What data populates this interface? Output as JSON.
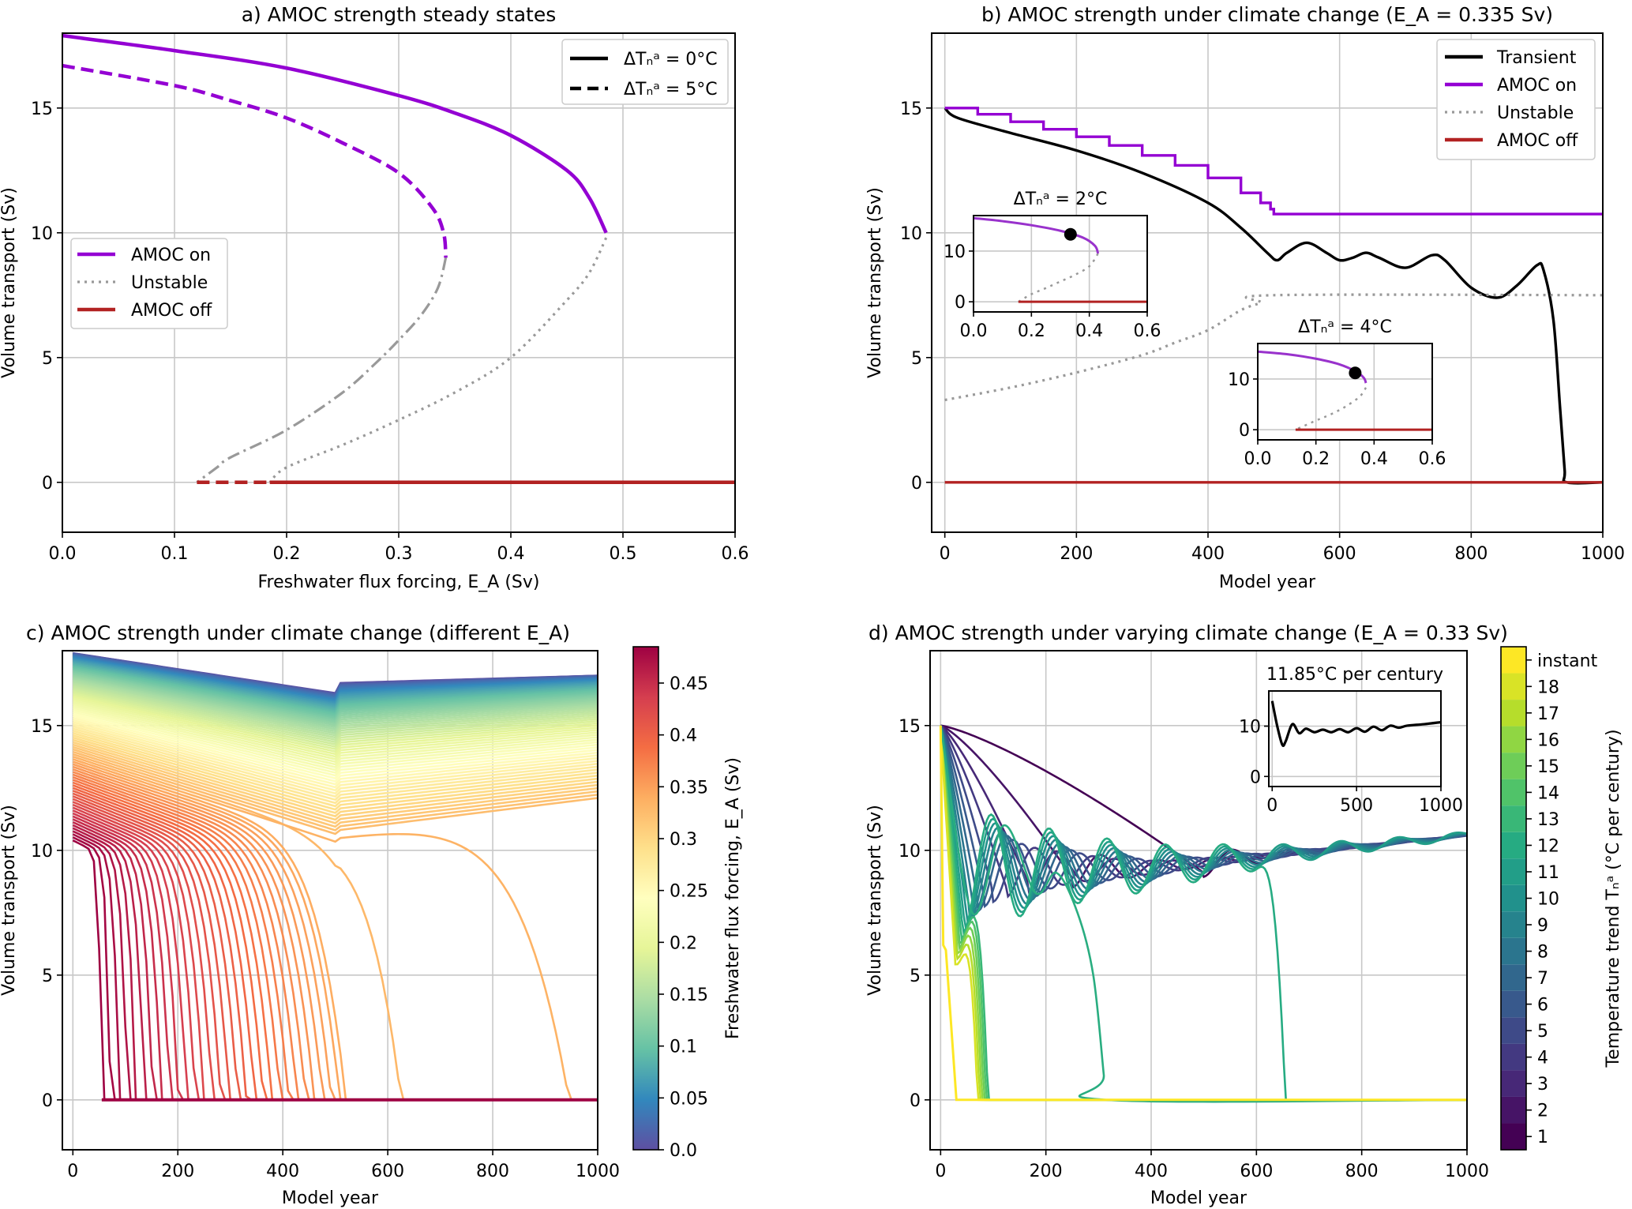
{
  "chart_data": [
    {
      "id": "a",
      "type": "line",
      "title": "a) AMOC strength steady states",
      "xlabel": "Freshwater flux forcing, E_A (Sv)",
      "ylabel": "Volume transport (Sv)",
      "xlim": [
        0.0,
        0.6
      ],
      "ylim": [
        -2,
        18
      ],
      "xticks": [
        "0.0",
        "0.1",
        "0.2",
        "0.3",
        "0.4",
        "0.5",
        "0.6"
      ],
      "yticks": [
        "0",
        "5",
        "10",
        "15"
      ],
      "grid": true,
      "legends": [
        {
          "placement": "upper-right",
          "entries": [
            {
              "label": "ΔTₙᵃ = 0°C",
              "style": "solid",
              "color": "#000000"
            },
            {
              "label": "ΔTₙᵃ = 5°C",
              "style": "dashed",
              "color": "#000000"
            }
          ]
        },
        {
          "placement": "center-left",
          "entries": [
            {
              "label": "AMOC on",
              "style": "solid",
              "color": "#9400d3"
            },
            {
              "label": "Unstable",
              "style": "dotted",
              "color": "#999999"
            },
            {
              "label": "AMOC off",
              "style": "solid",
              "color": "#b22222"
            }
          ]
        }
      ],
      "series": [
        {
          "name": "AMOC on (ΔT=0°C)",
          "color": "#9400d3",
          "style": "solid",
          "x": [
            0.0,
            0.1,
            0.2,
            0.3,
            0.35,
            0.4,
            0.45,
            0.47,
            0.485
          ],
          "y": [
            17.9,
            17.3,
            16.6,
            15.5,
            14.8,
            13.9,
            12.5,
            11.4,
            10.0
          ]
        },
        {
          "name": "Unstable (ΔT=0°C)",
          "color": "#999999",
          "style": "dotted",
          "x": [
            0.485,
            0.47,
            0.45,
            0.4,
            0.35,
            0.3,
            0.25,
            0.2,
            0.185
          ],
          "y": [
            9.8,
            8.4,
            7.3,
            5.0,
            3.6,
            2.5,
            1.5,
            0.6,
            0.0
          ]
        },
        {
          "name": "AMOC off (ΔT=0°C)",
          "color": "#b22222",
          "style": "solid",
          "x": [
            0.185,
            0.6
          ],
          "y": [
            0,
            0
          ]
        },
        {
          "name": "AMOC on (ΔT=5°C)",
          "color": "#9400d3",
          "style": "dashed",
          "x": [
            0.0,
            0.1,
            0.15,
            0.2,
            0.25,
            0.3,
            0.33,
            0.34,
            0.342
          ],
          "y": [
            16.7,
            15.9,
            15.3,
            14.6,
            13.6,
            12.4,
            11.0,
            10.0,
            9.0
          ]
        },
        {
          "name": "Unstable (ΔT=5°C)",
          "color": "#999999",
          "style": "dashdot",
          "x": [
            0.342,
            0.335,
            0.32,
            0.3,
            0.28,
            0.25,
            0.2,
            0.15,
            0.138,
            0.12
          ],
          "y": [
            9.0,
            7.8,
            6.7,
            5.7,
            4.8,
            3.6,
            2.1,
            1.0,
            0.6,
            0.0
          ]
        },
        {
          "name": "AMOC off (ΔT=5°C)",
          "color": "#b22222",
          "style": "dashed",
          "x": [
            0.12,
            0.6
          ],
          "y": [
            0,
            0
          ]
        }
      ]
    },
    {
      "id": "b",
      "type": "line",
      "title": "b) AMOC strength under climate change (E_A = 0.335 Sv)",
      "xlabel": "Model year",
      "ylabel": "Volume transport (Sv)",
      "xlim": [
        -20,
        1000
      ],
      "ylim": [
        -2,
        18
      ],
      "xticks": [
        "0",
        "200",
        "400",
        "600",
        "800",
        "1000"
      ],
      "yticks": [
        "0",
        "5",
        "10",
        "15"
      ],
      "grid": true,
      "legend": {
        "placement": "upper-right",
        "entries": [
          {
            "label": "Transient",
            "style": "solid",
            "color": "#000000"
          },
          {
            "label": "AMOC on",
            "style": "solid",
            "color": "#9400d3"
          },
          {
            "label": "Unstable",
            "style": "dotted",
            "color": "#999999"
          },
          {
            "label": "AMOC off",
            "style": "solid",
            "color": "#b22222"
          }
        ]
      },
      "series": [
        {
          "name": "Transient",
          "color": "#000000",
          "style": "solid",
          "x": [
            0,
            20,
            100,
            200,
            300,
            400,
            450,
            490,
            505,
            520,
            550,
            580,
            600,
            620,
            640,
            660,
            700,
            740,
            760,
            800,
            840,
            870,
            900,
            910,
            925,
            935,
            942,
            945,
            1000
          ],
          "y": [
            15.0,
            14.6,
            14.0,
            13.3,
            12.4,
            11.2,
            10.2,
            9.2,
            8.9,
            9.2,
            9.6,
            9.2,
            8.9,
            9.0,
            9.2,
            9.0,
            8.6,
            9.1,
            8.9,
            7.8,
            7.4,
            7.9,
            8.7,
            8.5,
            6.5,
            3.0,
            0.5,
            0.0,
            0.0
          ]
        },
        {
          "name": "AMOC on",
          "color": "#9400d3",
          "style": "step",
          "x": [
            0,
            50,
            100,
            150,
            200,
            250,
            300,
            350,
            400,
            450,
            480,
            495,
            500,
            1000
          ],
          "y": [
            15.0,
            14.75,
            14.45,
            14.15,
            13.85,
            13.5,
            13.1,
            12.7,
            12.2,
            11.6,
            11.2,
            10.95,
            10.75,
            10.75
          ]
        },
        {
          "name": "Unstable",
          "color": "#999999",
          "style": "dotted",
          "x": [
            0,
            100,
            200,
            300,
            350,
            400,
            450,
            480,
            500,
            1000
          ],
          "y": [
            3.3,
            3.8,
            4.4,
            5.1,
            5.6,
            6.1,
            6.9,
            7.2,
            7.5,
            7.5
          ]
        },
        {
          "name": "AMOC off",
          "color": "#b22222",
          "style": "solid",
          "x": [
            0,
            1000
          ],
          "y": [
            0,
            0
          ]
        }
      ],
      "insets": [
        {
          "title": "ΔTₙᵃ = 2°C",
          "xlim": [
            0,
            0.6
          ],
          "ylim": [
            -2,
            17
          ],
          "xticks": [
            "0.0",
            "0.2",
            "0.4",
            "0.6"
          ],
          "yticks": [
            "0",
            "10"
          ],
          "on": {
            "x": [
              0,
              0.1,
              0.2,
              0.3,
              0.38,
              0.42,
              0.43
            ],
            "y": [
              16.5,
              15.9,
              15.1,
              14.0,
              12.6,
              11.0,
              9.5
            ]
          },
          "unstable": {
            "x": [
              0.43,
              0.4,
              0.35,
              0.3,
              0.25,
              0.2,
              0.155
            ],
            "y": [
              9.5,
              7.0,
              5.3,
              4.0,
              2.7,
              1.5,
              0.0
            ]
          },
          "off": {
            "x": [
              0.155,
              0.6
            ],
            "y": [
              0,
              0
            ]
          },
          "marker": {
            "x": 0.335,
            "y": 13.3
          }
        },
        {
          "title": "ΔTₙᵃ = 4°C",
          "xlim": [
            0,
            0.6
          ],
          "ylim": [
            -2,
            17
          ],
          "xticks": [
            "0.0",
            "0.2",
            "0.4",
            "0.6"
          ],
          "yticks": [
            "0",
            "10"
          ],
          "on": {
            "x": [
              0,
              0.1,
              0.2,
              0.28,
              0.34,
              0.365,
              0.372
            ],
            "y": [
              15.4,
              14.9,
              14.0,
              12.9,
              11.4,
              10.2,
              9.2
            ]
          },
          "unstable": {
            "x": [
              0.372,
              0.35,
              0.3,
              0.25,
              0.2,
              0.13
            ],
            "y": [
              8.3,
              6.5,
              4.5,
              3.0,
              1.8,
              0.0
            ]
          },
          "off": {
            "x": [
              0.13,
              0.6
            ],
            "y": [
              0,
              0
            ]
          },
          "marker": {
            "x": 0.335,
            "y": 11.2
          }
        }
      ]
    },
    {
      "id": "c",
      "type": "line",
      "title": "c) AMOC strength under climate change (different E_A)",
      "xlabel": "Model year",
      "ylabel": "Volume transport (Sv)",
      "xlim": [
        -20,
        1000
      ],
      "ylim": [
        -2,
        18
      ],
      "xticks": [
        "0",
        "200",
        "400",
        "600",
        "800",
        "1000"
      ],
      "yticks": [
        "0",
        "5",
        "10",
        "15"
      ],
      "grid": true,
      "colorbar": {
        "label": "Freshwater flux forcing, E_A (Sv)",
        "colormap": "Spectral_r",
        "range": [
          0.0,
          0.485
        ],
        "ticks": [
          "0.0",
          "0.05",
          "0.1",
          "0.15",
          "0.2",
          "0.25",
          "0.3",
          "0.35",
          "0.4",
          "0.45"
        ]
      },
      "series_summary": {
        "ea_values": "0.0 to 0.485 Sv, approx. 0.005 Sv spacing (~97 curves)",
        "start_y_at_EA0": 17.9,
        "start_y_at_EA_max": 10.4,
        "kink_year": 500,
        "collapse_years_examples": [
          55,
          80,
          100,
          120,
          200,
          300,
          400,
          500,
          520,
          625,
          945
        ],
        "end_y_top_curve": 16.7
      }
    },
    {
      "id": "d",
      "type": "line",
      "title": "d) AMOC strength under varying climate change (E_A = 0.33 Sv)",
      "xlabel": "Model year",
      "ylabel": "Volume transport (Sv)",
      "xlim": [
        -20,
        1000
      ],
      "ylim": [
        -2,
        18
      ],
      "xticks": [
        "0",
        "200",
        "400",
        "600",
        "800",
        "1000"
      ],
      "yticks": [
        "0",
        "5",
        "10",
        "15"
      ],
      "grid": true,
      "colorbar": {
        "label": "Temperature trend Tₙᵃ (°C per century)",
        "colormap": "viridis (discrete)",
        "ticks": [
          "1",
          "2",
          "3",
          "4",
          "5",
          "6",
          "7",
          "8",
          "9",
          "10",
          "11",
          "12",
          "13",
          "14",
          "15",
          "16",
          "17",
          "18",
          "instant"
        ]
      },
      "series_summary": {
        "start_y": 15.0,
        "end_y_surviving": [
          10.3,
          10.9
        ],
        "collapse_years_examples": [
          30,
          65,
          75,
          90,
          315,
          655
        ],
        "instant_curve": {
          "x": [
            0,
            5,
            10,
            30,
            1000
          ],
          "y": [
            15.0,
            6.2,
            6.0,
            0.0,
            0.0
          ]
        }
      },
      "inset": {
        "title": "11.85°C per century",
        "xlim": [
          -20,
          1000
        ],
        "ylim": [
          -2,
          17
        ],
        "xticks": [
          "0",
          "500",
          "1000"
        ],
        "yticks": [
          "0",
          "10"
        ],
        "x": [
          0,
          30,
          60,
          80,
          120,
          160,
          200,
          250,
          300,
          350,
          400,
          450,
          500,
          550,
          600,
          650,
          700,
          750,
          800,
          900,
          1000
        ],
        "y": [
          15.0,
          10.0,
          6.3,
          7.0,
          10.4,
          8.6,
          9.5,
          8.8,
          9.3,
          8.8,
          9.4,
          8.8,
          9.6,
          8.9,
          9.9,
          9.2,
          10.1,
          9.7,
          10.1,
          10.4,
          10.8
        ]
      }
    }
  ]
}
